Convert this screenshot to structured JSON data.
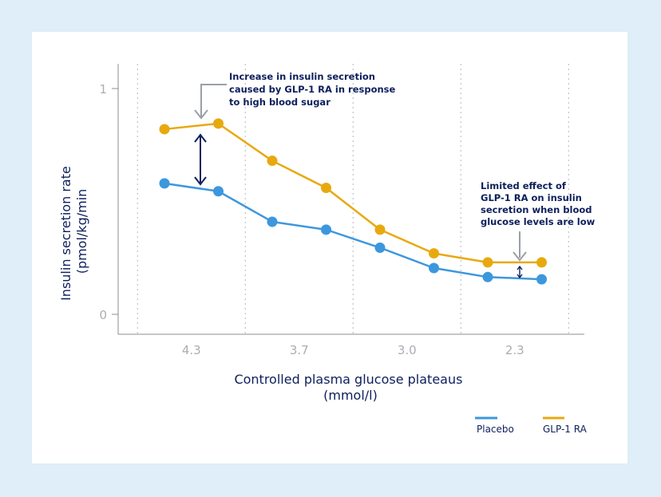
{
  "chart_data": {
    "type": "line",
    "categories": [
      "4.3",
      "3.7",
      "3.0",
      "2.3"
    ],
    "x": [
      1,
      2,
      3,
      4,
      5,
      6,
      7,
      8
    ],
    "series": [
      {
        "name": "Placebo",
        "color": "#3d97dd",
        "values": [
          0.58,
          0.545,
          0.41,
          0.375,
          0.295,
          0.205,
          0.165,
          0.155
        ]
      },
      {
        "name": "GLP-1 RA",
        "color": "#e8a90f",
        "values": [
          0.82,
          0.845,
          0.68,
          0.56,
          0.375,
          0.27,
          0.23,
          0.23
        ]
      }
    ],
    "yticks": [
      "1",
      "0"
    ],
    "ylim": [
      -0.09,
      1.11
    ],
    "xlabel": "Controlled plasma glucose plateaus",
    "xlabel_unit": "(mmol/l)",
    "ylabel": "Insulin secretion rate",
    "ylabel_unit": "(pmol/kg/min",
    "grid": "vertical-dotted",
    "legend_position": "bottom-right",
    "annotations": [
      {
        "lines": [
          "Increase in insulin secretion",
          "caused by GLP-1 RA in response",
          "to high blood sugar"
        ]
      },
      {
        "lines": [
          "Limited effect of",
          "GLP-1 RA on insulin",
          "secretion when blood",
          "glucose levels are low"
        ]
      }
    ]
  }
}
